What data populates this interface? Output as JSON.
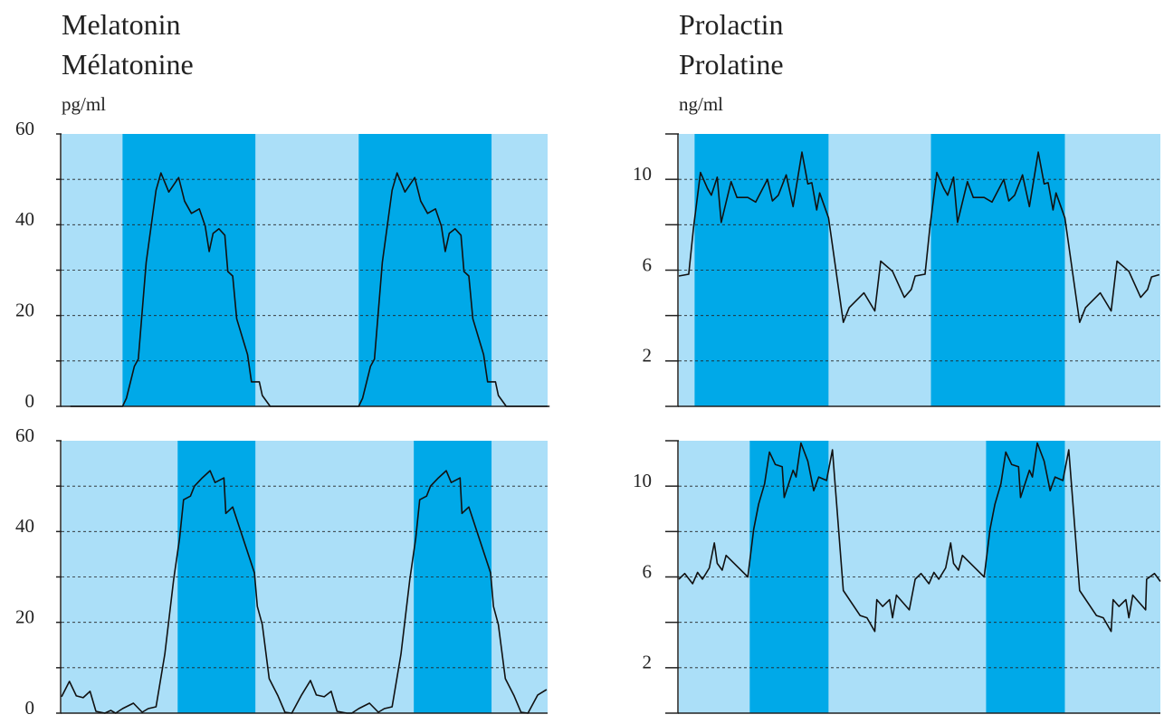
{
  "chart_data": [
    {
      "type": "line",
      "title": "Melatonin",
      "subtitle": "Mélatonine",
      "ylabel": "pg/ml",
      "xlim": [
        0,
        49.4
      ],
      "ylim": [
        0,
        60
      ],
      "yticks": [
        0,
        20,
        40,
        60
      ],
      "ygrid": [
        10,
        20,
        30,
        40,
        50
      ],
      "background": "#abdff8",
      "band_color": "#00a9e8",
      "color": "#111111",
      "bands": [
        [
          6.2,
          19.7
        ],
        [
          30.2,
          43.7
        ]
      ],
      "x": [
        0.9,
        6.2,
        6.6,
        7.4,
        7.8,
        8.6,
        9.6,
        10.1,
        10.9,
        11.9,
        12.5,
        13.2,
        14.0,
        14.6,
        15.0,
        15.4,
        16.0,
        16.6,
        16.9,
        17.4,
        17.8,
        18.9,
        19.3,
        20.1,
        20.4,
        21.2,
        30.2,
        30.6,
        31.4,
        31.8,
        32.6,
        33.6,
        34.1,
        34.9,
        35.9,
        36.5,
        37.2,
        38.0,
        38.6,
        39.0,
        39.4,
        40.0,
        40.6,
        40.9,
        41.4,
        41.8,
        42.9,
        43.3,
        44.1,
        44.4,
        45.2,
        49.6
      ],
      "values": [
        0,
        0,
        1.8,
        8.8,
        10.4,
        31.7,
        47.6,
        51.4,
        47.2,
        50.4,
        45.2,
        42.5,
        43.5,
        39.7,
        34.1,
        38.1,
        39.1,
        37.7,
        29.7,
        28.7,
        19.3,
        11.4,
        5.4,
        5.4,
        2.4,
        0,
        0,
        1.8,
        8.8,
        10.4,
        31.7,
        47.6,
        51.4,
        47.2,
        50.4,
        45.2,
        42.5,
        43.5,
        39.7,
        34.1,
        38.1,
        39.1,
        37.7,
        29.7,
        28.7,
        19.3,
        11.4,
        5.4,
        5.4,
        2.4,
        0,
        0
      ]
    },
    {
      "type": "line",
      "xlim": [
        0,
        49.4
      ],
      "ylim": [
        0,
        60
      ],
      "yticks": [
        0,
        20,
        40,
        60
      ],
      "ygrid": [
        10,
        20,
        30,
        40,
        50
      ],
      "background": "#abdff8",
      "band_color": "#00a9e8",
      "color": "#111111",
      "bands": [
        [
          11.8,
          19.7
        ],
        [
          35.8,
          43.7
        ]
      ],
      "x": [
        0,
        0.8,
        1.5,
        2.2,
        2.9,
        3.5,
        4.4,
        5.0,
        5.5,
        6.2,
        7.3,
        8.2,
        8.8,
        9.6,
        10.5,
        11.4,
        12.0,
        12.4,
        13.1,
        13.5,
        14.3,
        15.1,
        15.6,
        16.5,
        16.7,
        17.4,
        19.6,
        19.9,
        20.4,
        21.1,
        22.0,
        22.7,
        23.4,
        24.4,
        25.3,
        25.9,
        26.7,
        27.4,
        28.0,
        29.0,
        29.5,
        30.2,
        31.3,
        32.2,
        32.8,
        33.6,
        34.5,
        35.4,
        36.0,
        36.4,
        37.1,
        37.5,
        38.3,
        39.1,
        39.6,
        40.5,
        40.7,
        41.4,
        43.6,
        43.9,
        44.4,
        45.1,
        46.0,
        46.7,
        47.4,
        48.4,
        49.3
      ],
      "values": [
        3.6,
        7.0,
        3.8,
        3.4,
        4.8,
        0.4,
        0,
        0.6,
        0,
        1.0,
        2.2,
        0.2,
        1.0,
        1.4,
        13,
        29.5,
        38.5,
        47,
        47.8,
        50,
        51.8,
        53.4,
        50.8,
        51.8,
        44,
        45.4,
        30.9,
        23.5,
        19.5,
        7.6,
        3.8,
        0.2,
        0,
        4,
        7.2,
        4,
        3.6,
        4.8,
        0.4,
        0,
        0,
        1.0,
        2.2,
        0.2,
        1.0,
        1.4,
        13,
        29.5,
        38.5,
        47,
        47.8,
        50,
        51.8,
        53.4,
        50.8,
        51.8,
        44,
        45.4,
        30.9,
        23.5,
        19.5,
        7.6,
        3.8,
        0.2,
        0,
        4,
        5.2
      ]
    },
    {
      "type": "line",
      "title": "Prolactin",
      "subtitle": "Prolatine",
      "ylabel": "ng/ml",
      "xlim": [
        0,
        48.9
      ],
      "ylim": [
        0,
        12
      ],
      "yticks": [
        2,
        6,
        10
      ],
      "ygrid": [
        2,
        4,
        6,
        8,
        10
      ],
      "background": "#abdff8",
      "band_color": "#00a9e8",
      "color": "#111111",
      "bands": [
        [
          1.6,
          15.2
        ],
        [
          25.6,
          39.2
        ]
      ],
      "x": [
        0,
        1.0,
        1.5,
        2.2,
        2.9,
        3.3,
        3.9,
        4.3,
        5.3,
        5.9,
        7.0,
        7.8,
        9.0,
        9.5,
        10.1,
        10.9,
        11.6,
        12.5,
        13.1,
        13.5,
        14.0,
        14.3,
        15.2,
        16.7,
        17.3,
        18.8,
        19.9,
        20.5,
        21.7,
        22.9,
        23.6,
        24.0,
        25.0,
        25.5,
        26.2,
        26.9,
        27.3,
        27.9,
        28.3,
        29.3,
        29.9,
        31.0,
        31.8,
        33.0,
        33.5,
        34.1,
        34.9,
        35.6,
        36.5,
        37.1,
        37.5,
        38.0,
        38.3,
        39.2,
        40.7,
        41.3,
        42.8,
        43.9,
        44.5,
        45.7,
        46.9,
        47.6,
        48.0,
        48.8
      ],
      "values": [
        5.74,
        5.82,
        7.9,
        10.3,
        9.6,
        9.3,
        10.1,
        8.1,
        9.9,
        9.2,
        9.2,
        9.0,
        10.0,
        9.05,
        9.3,
        10.2,
        8.8,
        11.2,
        9.8,
        9.85,
        8.65,
        9.4,
        8.3,
        3.7,
        4.35,
        5.0,
        4.2,
        6.4,
        5.95,
        4.8,
        5.15,
        5.74,
        5.82,
        7.9,
        10.3,
        9.6,
        9.3,
        10.1,
        8.1,
        9.9,
        9.2,
        9.2,
        9.0,
        10.0,
        9.05,
        9.3,
        10.2,
        8.8,
        11.2,
        9.8,
        9.85,
        8.65,
        9.4,
        8.3,
        3.7,
        4.35,
        5.0,
        4.2,
        6.4,
        5.95,
        4.8,
        5.15,
        5.7,
        5.8
      ]
    },
    {
      "type": "line",
      "xlim": [
        0,
        48.9
      ],
      "ylim": [
        0,
        12
      ],
      "yticks": [
        2,
        6,
        10
      ],
      "ygrid": [
        2,
        4,
        6,
        8,
        10
      ],
      "background": "#abdff8",
      "band_color": "#00a9e8",
      "color": "#111111",
      "bands": [
        [
          7.2,
          15.2
        ],
        [
          31.2,
          39.2
        ]
      ],
      "x": [
        0,
        0.6,
        1.4,
        1.9,
        2.4,
        3.1,
        3.6,
        3.9,
        4.4,
        4.8,
        7.0,
        7.6,
        8.1,
        8.7,
        9.2,
        9.8,
        10.5,
        10.7,
        11.6,
        11.9,
        12.4,
        13.1,
        13.7,
        14.2,
        15.0,
        15.6,
        16.7,
        18.4,
        19.1,
        19.9,
        20.1,
        20.7,
        21.4,
        21.7,
        22.1,
        23.4,
        24.0,
        24.6,
        25.4,
        25.9,
        26.4,
        27.1,
        27.6,
        27.9,
        28.4,
        28.8,
        31.0,
        31.6,
        32.1,
        32.7,
        33.2,
        33.8,
        34.5,
        34.7,
        35.6,
        35.9,
        36.4,
        37.1,
        37.7,
        38.2,
        39.0,
        39.6,
        40.7,
        42.4,
        43.1,
        43.9,
        44.1,
        44.7,
        45.4,
        45.7,
        46.1,
        47.4,
        47.5,
        48.3,
        48.9
      ],
      "values": [
        5.9,
        6.15,
        5.7,
        6.2,
        5.9,
        6.4,
        7.5,
        6.6,
        6.3,
        6.95,
        6.0,
        8.1,
        9.2,
        10.1,
        11.5,
        10.95,
        10.85,
        9.5,
        10.7,
        10.4,
        11.9,
        11.1,
        9.8,
        10.4,
        10.25,
        11.6,
        5.4,
        4.3,
        4.2,
        3.6,
        5.0,
        4.7,
        5.0,
        4.2,
        5.2,
        4.55,
        5.9,
        6.15,
        5.7,
        6.2,
        5.9,
        6.4,
        7.5,
        6.6,
        6.3,
        6.95,
        6.0,
        8.1,
        9.2,
        10.1,
        11.5,
        10.95,
        10.85,
        9.5,
        10.7,
        10.4,
        11.9,
        11.1,
        9.8,
        10.4,
        10.25,
        11.6,
        5.4,
        4.3,
        4.2,
        3.6,
        5.0,
        4.7,
        5.0,
        4.2,
        5.2,
        4.55,
        5.9,
        6.15,
        5.8
      ]
    }
  ]
}
